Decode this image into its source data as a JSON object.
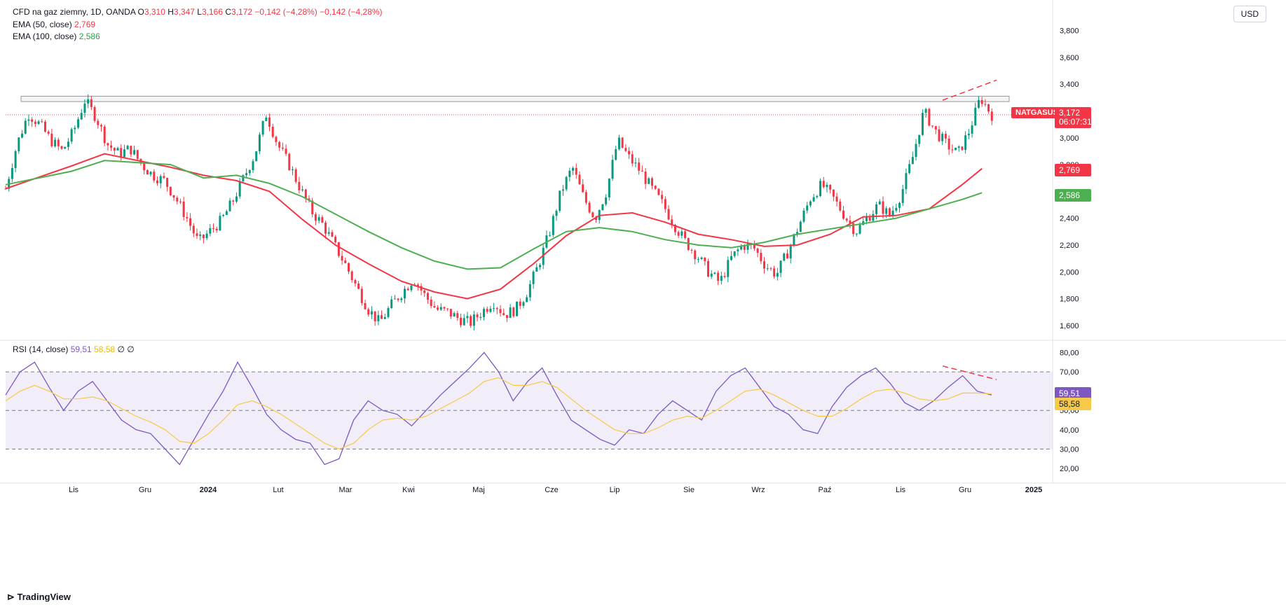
{
  "header": {
    "symbol_line": "CFD na gaz ziemny, 1D, OANDA",
    "open_label": "O",
    "open": "3,310",
    "high_label": "H",
    "high": "3,347",
    "low_label": "L",
    "low": "3,166",
    "close_label": "C",
    "close": "3,172",
    "change": "−0,142 (−4,28%)",
    "change2": "−0,142 (−4,28%)",
    "ema50_label": "EMA (50, close)",
    "ema50_value": "2,769",
    "ema100_label": "EMA (100, close)",
    "ema100_value": "2,586",
    "rsi_label": "RSI (14, close)",
    "rsi_value": "59,51",
    "rsi_ma_value": "58,58",
    "rsi_extra1": "∅",
    "rsi_extra2": "∅"
  },
  "currency_button": "USD",
  "price_tag": {
    "symbol": "NATGASUSD",
    "price": "3,172",
    "timer": "06:07:31"
  },
  "ema50_tag": "2,769",
  "ema100_tag": "2,586",
  "rsi_tag": "59,51",
  "rsi_ma_tag": "58,58",
  "brand": "TradingView",
  "colors": {
    "up": "#089981",
    "down": "#f23645",
    "ema50": "#f23645",
    "ema100": "#4caf50",
    "rsi": "#7e57c2",
    "rsi_ma": "#f7c948"
  },
  "chart_data": [
    {
      "type": "candlestick",
      "title": "CFD na gaz ziemny, 1D, OANDA",
      "y_tick_labels": [
        "1,600",
        "1,800",
        "2,000",
        "2,200",
        "2,400",
        "2,600",
        "2,800",
        "3,000",
        "3,200",
        "3,400",
        "3,600",
        "3,800"
      ],
      "ylim": [
        1.5,
        3.85
      ],
      "x_tick_labels": [
        "Lis",
        "Gru",
        "2024",
        "Lut",
        "Mar",
        "Kwi",
        "Maj",
        "Cze",
        "Lip",
        "Sie",
        "Wrz",
        "Paź",
        "Lis",
        "Gru",
        "2025"
      ],
      "series": [
        {
          "name": "EMA (50, close)",
          "points": [
            [
              0,
              2.62
            ],
            [
              20,
              2.79
            ],
            [
              30,
              2.88
            ],
            [
              50,
              2.78
            ],
            [
              60,
              2.72
            ],
            [
              70,
              2.68
            ],
            [
              80,
              2.6
            ],
            [
              90,
              2.39
            ],
            [
              100,
              2.2
            ],
            [
              110,
              2.06
            ],
            [
              120,
              1.93
            ],
            [
              130,
              1.85
            ],
            [
              140,
              1.8
            ],
            [
              150,
              1.87
            ],
            [
              160,
              2.06
            ],
            [
              170,
              2.27
            ],
            [
              180,
              2.42
            ],
            [
              190,
              2.44
            ],
            [
              200,
              2.37
            ],
            [
              210,
              2.28
            ],
            [
              220,
              2.24
            ],
            [
              230,
              2.19
            ],
            [
              240,
              2.2
            ],
            [
              250,
              2.28
            ],
            [
              260,
              2.41
            ],
            [
              270,
              2.42
            ],
            [
              280,
              2.47
            ],
            [
              290,
              2.65
            ],
            [
              296,
              2.77
            ]
          ]
        },
        {
          "name": "EMA (100, close)",
          "points": [
            [
              0,
              2.65
            ],
            [
              20,
              2.75
            ],
            [
              30,
              2.83
            ],
            [
              50,
              2.8
            ],
            [
              60,
              2.7
            ],
            [
              70,
              2.72
            ],
            [
              80,
              2.66
            ],
            [
              90,
              2.56
            ],
            [
              100,
              2.43
            ],
            [
              110,
              2.3
            ],
            [
              120,
              2.18
            ],
            [
              130,
              2.08
            ],
            [
              140,
              2.02
            ],
            [
              150,
              2.03
            ],
            [
              160,
              2.17
            ],
            [
              170,
              2.3
            ],
            [
              180,
              2.33
            ],
            [
              190,
              2.3
            ],
            [
              200,
              2.24
            ],
            [
              210,
              2.2
            ],
            [
              220,
              2.18
            ],
            [
              230,
              2.22
            ],
            [
              240,
              2.28
            ],
            [
              250,
              2.32
            ],
            [
              260,
              2.36
            ],
            [
              270,
              2.4
            ],
            [
              280,
              2.47
            ],
            [
              290,
              2.54
            ],
            [
              296,
              2.59
            ]
          ]
        }
      ],
      "close_path": [
        2.62,
        2.95,
        3.18,
        3.1,
        2.98,
        2.9,
        3.05,
        3.28,
        3.15,
        2.95,
        2.88,
        2.92,
        2.8,
        2.72,
        2.68,
        2.55,
        2.4,
        2.22,
        2.3,
        2.38,
        2.52,
        2.7,
        2.88,
        3.18,
        2.95,
        2.8,
        2.62,
        2.45,
        2.35,
        2.2,
        2.05,
        1.88,
        1.72,
        1.62,
        1.75,
        1.85,
        1.95,
        1.82,
        1.72,
        1.7,
        1.65,
        1.62,
        1.7,
        1.78,
        1.68,
        1.72,
        1.85,
        2.05,
        2.3,
        2.6,
        2.78,
        2.55,
        2.4,
        2.6,
        2.98,
        2.85,
        2.75,
        2.62,
        2.5,
        2.35,
        2.22,
        2.12,
        2.0,
        1.92,
        2.1,
        2.2,
        2.18,
        2.05,
        1.98,
        2.15,
        2.35,
        2.55,
        2.65,
        2.55,
        2.42,
        2.3,
        2.4,
        2.5,
        2.42,
        2.58,
        2.85,
        3.2,
        3.05,
        2.95,
        2.88,
        3.05,
        3.3,
        3.17
      ]
    },
    {
      "type": "line",
      "title": "RSI (14, close)",
      "y_tick_labels": [
        "20,00",
        "30,00",
        "40,00",
        "50,00",
        "60,00",
        "70,00",
        "80,00"
      ],
      "ylim": [
        16,
        82
      ],
      "bands": [
        30,
        50,
        70
      ],
      "series": [
        {
          "name": "RSI",
          "values": [
            58,
            70,
            75,
            62,
            50,
            60,
            65,
            55,
            45,
            40,
            38,
            30,
            22,
            35,
            48,
            60,
            75,
            62,
            48,
            40,
            35,
            33,
            22,
            25,
            45,
            55,
            50,
            48,
            42,
            50,
            58,
            65,
            72,
            80,
            70,
            55,
            65,
            72,
            58,
            45,
            40,
            35,
            32,
            40,
            38,
            48,
            55,
            50,
            45,
            60,
            68,
            72,
            62,
            52,
            48,
            40,
            38,
            52,
            62,
            68,
            72,
            64,
            54,
            50,
            55,
            62,
            68,
            60,
            58
          ]
        },
        {
          "name": "RSI MA",
          "values": [
            55,
            60,
            63,
            60,
            56,
            56,
            57,
            55,
            51,
            47,
            44,
            40,
            34,
            33,
            38,
            45,
            53,
            55,
            52,
            48,
            43,
            38,
            33,
            30,
            33,
            40,
            45,
            46,
            45,
            47,
            51,
            55,
            59,
            65,
            67,
            63,
            63,
            65,
            62,
            56,
            50,
            45,
            40,
            38,
            38,
            41,
            45,
            47,
            46,
            50,
            55,
            60,
            61,
            58,
            54,
            50,
            47,
            47,
            51,
            56,
            60,
            61,
            59,
            56,
            55,
            56,
            59,
            59,
            58.58
          ]
        }
      ]
    }
  ]
}
